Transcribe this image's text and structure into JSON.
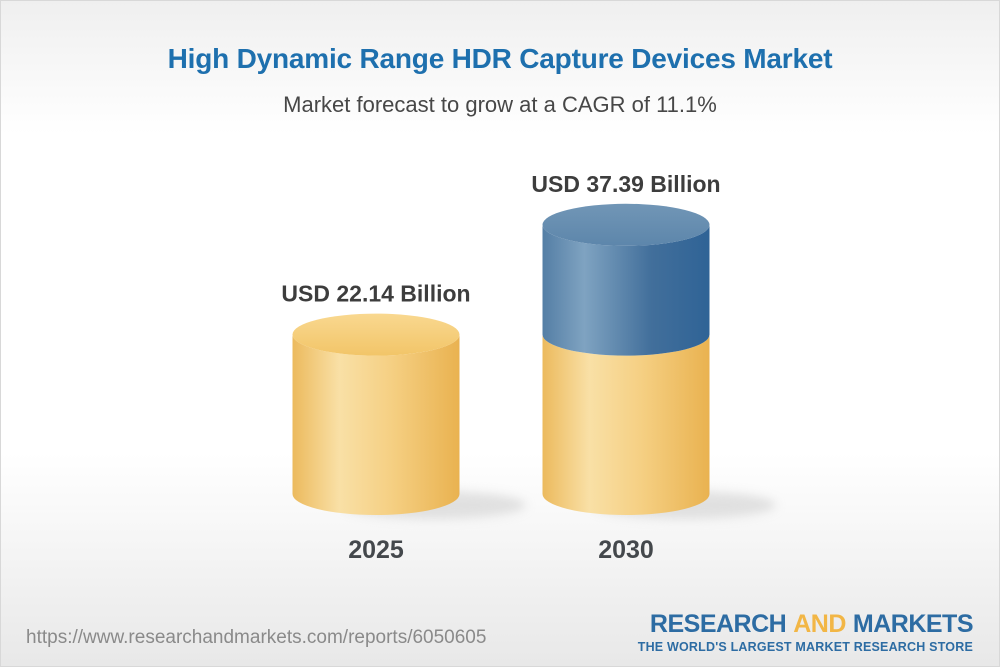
{
  "header": {
    "title": "High Dynamic Range HDR Capture Devices Market",
    "subtitle": "Market forecast to grow at a CAGR of 11.1%",
    "title_color": "#1E70AE"
  },
  "chart_data": {
    "type": "bar",
    "variant": "3d-cylinder",
    "title": "High Dynamic Range HDR Capture Devices Market",
    "subtitle": "Market forecast to grow at a CAGR of 11.1%",
    "categories": [
      "2025",
      "2030"
    ],
    "values": [
      22.14,
      37.39
    ],
    "unit": "USD Billion",
    "value_labels": [
      "USD 22.14 Billion",
      "USD 37.39 Billion"
    ],
    "cagr_percent": 11.1,
    "legend": "none",
    "grid": false,
    "axes": "none",
    "colors": {
      "gold_side": [
        "#ECBA5D",
        "#F9E0A6",
        "#F5CF82",
        "#E9B250"
      ],
      "gold_top": [
        "#F9D890",
        "#F2C568"
      ],
      "blue_side": [
        "#547EA5",
        "#7FA3C1",
        "#426F9B",
        "#2F6396"
      ],
      "blue_top": [
        "#7196B6",
        "#5D86AB"
      ],
      "value_label_color": "#3D3D3D",
      "year_label_color": "#44484C"
    }
  },
  "footer": {
    "url": "https://www.researchandmarkets.com/reports/6050605",
    "logo": {
      "word1": "RESEARCH",
      "word2": "AND",
      "word3": "MARKETS",
      "tagline": "THE WORLD'S LARGEST MARKET RESEARCH STORE",
      "blue": "#2D6CA3",
      "yellow": "#F2B645"
    }
  }
}
